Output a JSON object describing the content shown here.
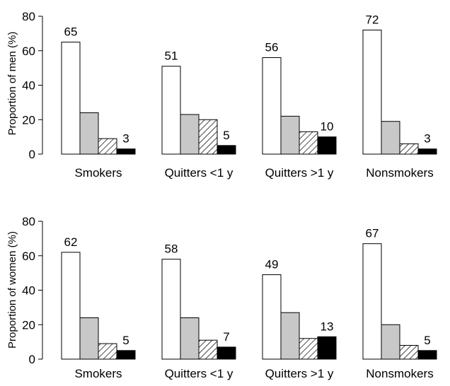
{
  "chart_data": [
    {
      "type": "bar",
      "ylabel": "Proportion of men (%)",
      "ylim": [
        0,
        80
      ],
      "yticks": [
        0,
        20,
        40,
        60,
        80
      ],
      "categories": [
        "Smokers",
        "Quitters <1 y",
        "Quitters >1 y",
        "Nonsmokers"
      ],
      "series": [
        {
          "fill": "white",
          "values": [
            65,
            51,
            56,
            72
          ]
        },
        {
          "fill": "gray",
          "values": [
            24,
            23,
            22,
            19
          ]
        },
        {
          "fill": "hatched",
          "values": [
            9,
            20,
            13,
            6
          ]
        },
        {
          "fill": "black",
          "values": [
            3,
            5,
            10,
            3
          ]
        }
      ],
      "data_labels": [
        {
          "category": 0,
          "series": 0,
          "text": "65"
        },
        {
          "category": 0,
          "series": 3,
          "text": "3"
        },
        {
          "category": 1,
          "series": 0,
          "text": "51"
        },
        {
          "category": 1,
          "series": 3,
          "text": "5"
        },
        {
          "category": 2,
          "series": 0,
          "text": "56"
        },
        {
          "category": 2,
          "series": 3,
          "text": "10"
        },
        {
          "category": 3,
          "series": 0,
          "text": "72"
        },
        {
          "category": 3,
          "series": 3,
          "text": "3"
        }
      ],
      "grid": false
    },
    {
      "type": "bar",
      "ylabel": "Proportion of women (%)",
      "ylim": [
        0,
        80
      ],
      "yticks": [
        0,
        20,
        40,
        60,
        80
      ],
      "categories": [
        "Smokers",
        "Quitters <1 y",
        "Quitters >1 y",
        "Nonsmokers"
      ],
      "series": [
        {
          "fill": "white",
          "values": [
            62,
            58,
            49,
            67
          ]
        },
        {
          "fill": "gray",
          "values": [
            24,
            24,
            27,
            20
          ]
        },
        {
          "fill": "hatched",
          "values": [
            9,
            11,
            12,
            8
          ]
        },
        {
          "fill": "black",
          "values": [
            5,
            7,
            13,
            5
          ]
        }
      ],
      "data_labels": [
        {
          "category": 0,
          "series": 0,
          "text": "62"
        },
        {
          "category": 0,
          "series": 3,
          "text": "5"
        },
        {
          "category": 1,
          "series": 0,
          "text": "58"
        },
        {
          "category": 1,
          "series": 3,
          "text": "7"
        },
        {
          "category": 2,
          "series": 0,
          "text": "49"
        },
        {
          "category": 2,
          "series": 3,
          "text": "13"
        },
        {
          "category": 3,
          "series": 0,
          "text": "67"
        },
        {
          "category": 3,
          "series": 3,
          "text": "5"
        }
      ],
      "grid": false
    }
  ],
  "colors": {
    "white": "#ffffff",
    "gray": "#c8c8c8",
    "black": "#000000",
    "outline": "#000000"
  }
}
